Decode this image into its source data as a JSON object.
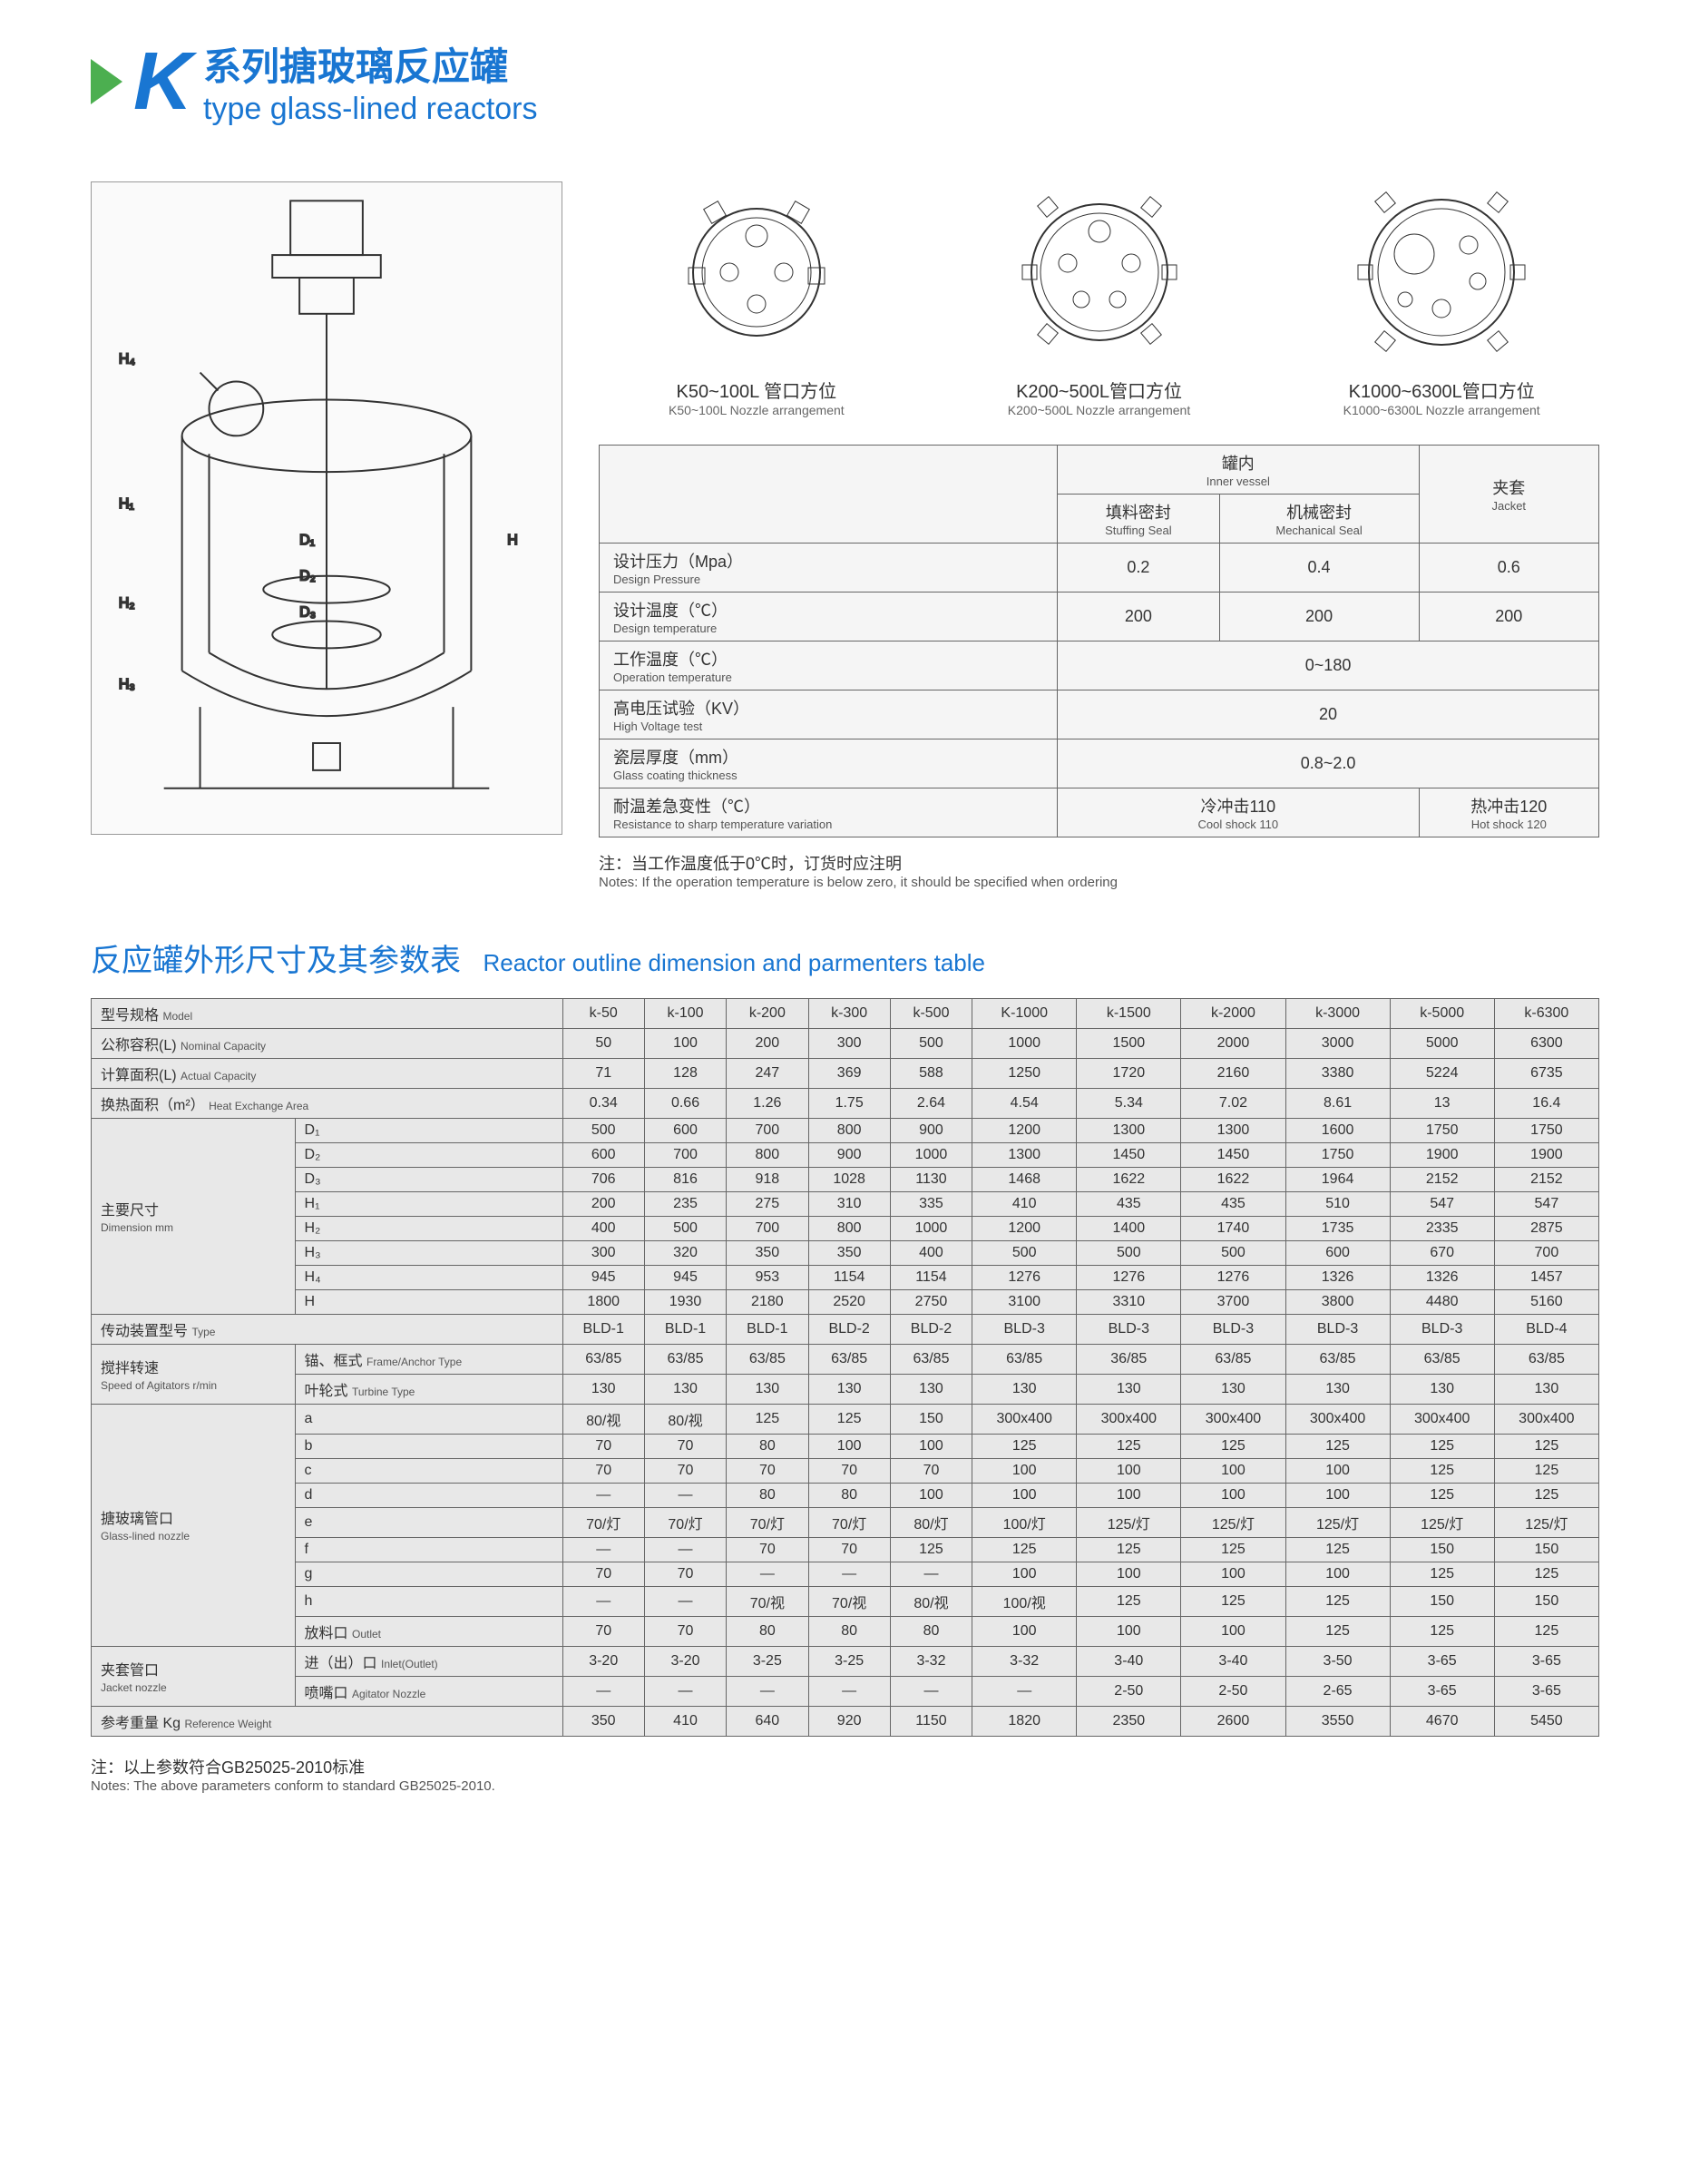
{
  "header": {
    "k": "K",
    "title_cn": "系列搪玻璃反应罐",
    "title_en": "type glass-lined reactors"
  },
  "nozzles": [
    {
      "cn": "K50~100L 管口方位",
      "en": "K50~100L Nozzle arrangement"
    },
    {
      "cn": "K200~500L管口方位",
      "en": "K200~500L Nozzle arrangement"
    },
    {
      "cn": "K1000~6300L管口方位",
      "en": "K1000~6300L Nozzle arrangement"
    }
  ],
  "spec": {
    "inner_vessel_cn": "罐内",
    "inner_vessel_en": "Inner vessel",
    "jacket_cn": "夹套",
    "jacket_en": "Jacket",
    "stuffing_cn": "填料密封",
    "stuffing_en": "Stuffing Seal",
    "mech_cn": "机械密封",
    "mech_en": "Mechanical Seal",
    "rows": [
      {
        "label_cn": "设计压力（Mpa）",
        "label_en": "Design Pressure",
        "v1": "0.2",
        "v2": "0.4",
        "v3": "0.6"
      },
      {
        "label_cn": "设计温度（℃）",
        "label_en": "Design temperature",
        "v1": "200",
        "v2": "200",
        "v3": "200"
      },
      {
        "label_cn": "工作温度（℃）",
        "label_en": "Operation temperature",
        "span": "0~180"
      },
      {
        "label_cn": "高电压试验（KV）",
        "label_en": "High Voltage test",
        "span": "20"
      },
      {
        "label_cn": "瓷层厚度（mm）",
        "label_en": "Glass coating thickness",
        "span": "0.8~2.0"
      },
      {
        "label_cn": "耐温差急变性（℃）",
        "label_en": "Resistance to sharp temperature variation",
        "v12_cn": "冷冲击110",
        "v12_en": "Cool shock 110",
        "v3_cn": "热冲击120",
        "v3_en": "Hot shock 120"
      }
    ],
    "note_cn": "注：当工作温度低于0℃时，订货时应注明",
    "note_en": "Notes: If the operation temperature is below zero, it should be specified when ordering"
  },
  "main": {
    "title_cn": "反应罐外形尺寸及其参数表",
    "title_en": "Reactor outline dimension and parmenters table",
    "models": [
      "k-50",
      "k-100",
      "k-200",
      "k-300",
      "k-500",
      "K-1000",
      "k-1500",
      "k-2000",
      "k-3000",
      "k-5000",
      "k-6300"
    ],
    "rows": [
      {
        "l_cn": "型号规格",
        "l_en": "Model",
        "vals": [
          "k-50",
          "k-100",
          "k-200",
          "k-300",
          "k-500",
          "K-1000",
          "k-1500",
          "k-2000",
          "k-3000",
          "k-5000",
          "k-6300"
        ]
      },
      {
        "l_cn": "公称容积(L)",
        "l_en": "Nominal Capacity",
        "vals": [
          "50",
          "100",
          "200",
          "300",
          "500",
          "1000",
          "1500",
          "2000",
          "3000",
          "5000",
          "6300"
        ]
      },
      {
        "l_cn": "计算面积(L)",
        "l_en": "Actual Capacity",
        "vals": [
          "71",
          "128",
          "247",
          "369",
          "588",
          "1250",
          "1720",
          "2160",
          "3380",
          "5224",
          "6735"
        ]
      },
      {
        "l_cn": "换热面积（m²）",
        "l_en": "Heat Exchange Area",
        "vals": [
          "0.34",
          "0.66",
          "1.26",
          "1.75",
          "2.64",
          "4.54",
          "5.34",
          "7.02",
          "8.61",
          "13",
          "16.4"
        ]
      }
    ],
    "dimension_group_cn": "主要尺寸",
    "dimension_group_en": "Dimension mm",
    "dimension_rows": [
      {
        "sub": "D₁",
        "vals": [
          "500",
          "600",
          "700",
          "800",
          "900",
          "1200",
          "1300",
          "1300",
          "1600",
          "1750",
          "1750"
        ]
      },
      {
        "sub": "D₂",
        "vals": [
          "600",
          "700",
          "800",
          "900",
          "1000",
          "1300",
          "1450",
          "1450",
          "1750",
          "1900",
          "1900"
        ]
      },
      {
        "sub": "D₃",
        "vals": [
          "706",
          "816",
          "918",
          "1028",
          "1130",
          "1468",
          "1622",
          "1622",
          "1964",
          "2152",
          "2152"
        ]
      },
      {
        "sub": "H₁",
        "vals": [
          "200",
          "235",
          "275",
          "310",
          "335",
          "410",
          "435",
          "435",
          "510",
          "547",
          "547"
        ]
      },
      {
        "sub": "H₂",
        "vals": [
          "400",
          "500",
          "700",
          "800",
          "1000",
          "1200",
          "1400",
          "1740",
          "1735",
          "2335",
          "2875"
        ]
      },
      {
        "sub": "H₃",
        "vals": [
          "300",
          "320",
          "350",
          "350",
          "400",
          "500",
          "500",
          "500",
          "600",
          "670",
          "700"
        ]
      },
      {
        "sub": "H₄",
        "vals": [
          "945",
          "945",
          "953",
          "1154",
          "1154",
          "1276",
          "1276",
          "1276",
          "1326",
          "1326",
          "1457"
        ]
      },
      {
        "sub": "H",
        "vals": [
          "1800",
          "1930",
          "2180",
          "2520",
          "2750",
          "3100",
          "3310",
          "3700",
          "3800",
          "4480",
          "5160"
        ]
      }
    ],
    "drive_cn": "传动装置型号",
    "drive_en": "Type",
    "drive_vals": [
      "BLD-1",
      "BLD-1",
      "BLD-1",
      "BLD-2",
      "BLD-2",
      "BLD-3",
      "BLD-3",
      "BLD-3",
      "BLD-3",
      "BLD-3",
      "BLD-4"
    ],
    "speed_cn": "搅拌转速",
    "speed_en": "Speed of Agitators r/min",
    "speed_rows": [
      {
        "sub_cn": "锚、框式",
        "sub_en": "Frame/Anchor Type",
        "vals": [
          "63/85",
          "63/85",
          "63/85",
          "63/85",
          "63/85",
          "63/85",
          "36/85",
          "63/85",
          "63/85",
          "63/85",
          "63/85"
        ]
      },
      {
        "sub_cn": "叶轮式",
        "sub_en": "Turbine Type",
        "vals": [
          "130",
          "130",
          "130",
          "130",
          "130",
          "130",
          "130",
          "130",
          "130",
          "130",
          "130"
        ]
      }
    ],
    "nozzle_group_cn": "搪玻璃管口",
    "nozzle_group_en": "Glass-lined nozzle",
    "nozzle_rows": [
      {
        "sub": "a",
        "vals": [
          "80/视",
          "80/视",
          "125",
          "125",
          "150",
          "300x400",
          "300x400",
          "300x400",
          "300x400",
          "300x400",
          "300x400"
        ]
      },
      {
        "sub": "b",
        "vals": [
          "70",
          "70",
          "80",
          "100",
          "100",
          "125",
          "125",
          "125",
          "125",
          "125",
          "125"
        ]
      },
      {
        "sub": "c",
        "vals": [
          "70",
          "70",
          "70",
          "70",
          "70",
          "100",
          "100",
          "100",
          "100",
          "125",
          "125"
        ]
      },
      {
        "sub": "d",
        "vals": [
          "—",
          "—",
          "80",
          "80",
          "100",
          "100",
          "100",
          "100",
          "100",
          "125",
          "125"
        ]
      },
      {
        "sub": "e",
        "vals": [
          "70/灯",
          "70/灯",
          "70/灯",
          "70/灯",
          "80/灯",
          "100/灯",
          "125/灯",
          "125/灯",
          "125/灯",
          "125/灯",
          "125/灯"
        ]
      },
      {
        "sub": "f",
        "vals": [
          "—",
          "—",
          "70",
          "70",
          "125",
          "125",
          "125",
          "125",
          "125",
          "150",
          "150"
        ]
      },
      {
        "sub": "g",
        "vals": [
          "70",
          "70",
          "—",
          "—",
          "—",
          "100",
          "100",
          "100",
          "100",
          "125",
          "125"
        ]
      },
      {
        "sub": "h",
        "vals": [
          "—",
          "—",
          "70/视",
          "70/视",
          "80/视",
          "100/视",
          "125",
          "125",
          "125",
          "150",
          "150"
        ]
      },
      {
        "sub_cn": "放料口",
        "sub_en": "Outlet",
        "vals": [
          "70",
          "70",
          "80",
          "80",
          "80",
          "100",
          "100",
          "100",
          "125",
          "125",
          "125"
        ]
      }
    ],
    "jacket_group_cn": "夹套管口",
    "jacket_group_en": "Jacket nozzle",
    "jacket_rows": [
      {
        "sub_cn": "进（出）口",
        "sub_en": "Inlet(Outlet)",
        "vals": [
          "3-20",
          "3-20",
          "3-25",
          "3-25",
          "3-32",
          "3-32",
          "3-40",
          "3-40",
          "3-50",
          "3-65",
          "3-65"
        ]
      },
      {
        "sub_cn": "喷嘴口",
        "sub_en": "Agitator Nozzle",
        "vals": [
          "—",
          "—",
          "—",
          "—",
          "—",
          "—",
          "2-50",
          "2-50",
          "2-65",
          "3-65",
          "3-65"
        ]
      }
    ],
    "weight_cn": "参考重量 Kg",
    "weight_en": "Reference Weight",
    "weight_vals": [
      "350",
      "410",
      "640",
      "920",
      "1150",
      "1820",
      "2350",
      "2600",
      "3550",
      "4670",
      "5450"
    ],
    "footer_cn": "注：以上参数符合GB25025-2010标准",
    "footer_en": "Notes: The above parameters conform to standard GB25025-2010."
  },
  "colors": {
    "accent": "#1976d2",
    "triangle": "#4caf50",
    "table_bg": "#e8e8e8",
    "border": "#666666"
  }
}
